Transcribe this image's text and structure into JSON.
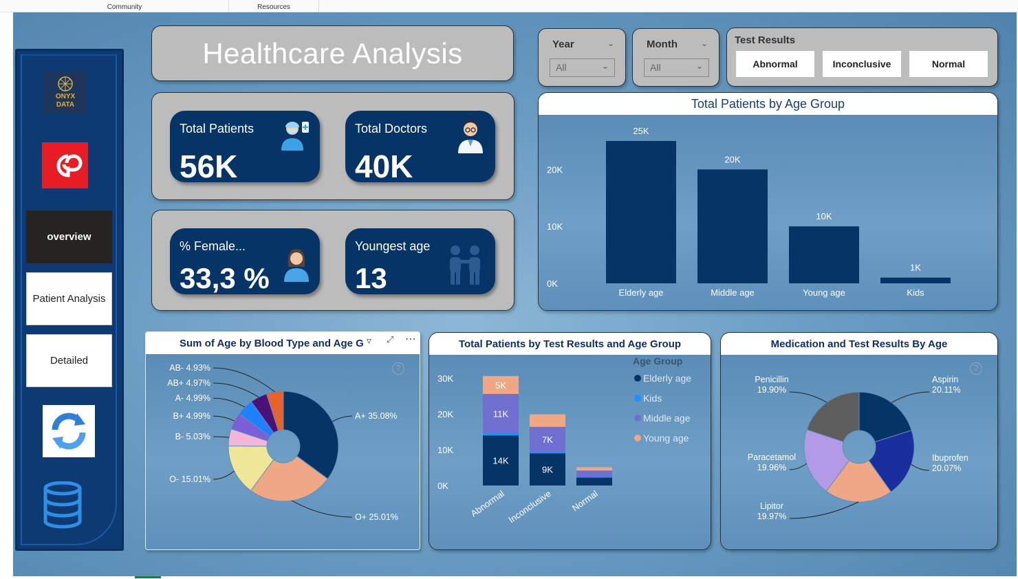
{
  "topbar": {
    "tabs": [
      "Community",
      "Resources"
    ]
  },
  "sidebar": {
    "logo_text": [
      "ONYX",
      "DATA"
    ],
    "nav": [
      {
        "label": "overview",
        "active": true
      },
      {
        "label": "Patient Analysis",
        "active": false
      },
      {
        "label": "Detailed",
        "active": false
      }
    ]
  },
  "header": {
    "title": "Healthcare Analysis"
  },
  "filters": {
    "year": {
      "title": "Year",
      "value": "All"
    },
    "month": {
      "title": "Month",
      "value": "All"
    },
    "test_results": {
      "title": "Test Results",
      "options": [
        "Abnormal",
        "Inconclusive",
        "Normal"
      ]
    }
  },
  "kpis": {
    "total_patients": {
      "label": "Total Patients",
      "value": "56K"
    },
    "total_doctors": {
      "label": "Total Doctors",
      "value": "40K"
    },
    "pct_female": {
      "label": "% Female...",
      "value": "33,3 %"
    },
    "youngest_age": {
      "label": "Youngest age",
      "value": "13"
    }
  },
  "colors": {
    "navy": "#063466",
    "accent_blue": "#1e90ff",
    "purple": "#7b6fd3",
    "salmon": "#f0a785"
  },
  "chart_data": [
    {
      "type": "bar",
      "title": "Total Patients by Age Group",
      "categories": [
        "Elderly age",
        "Middle age",
        "Young age",
        "Kids"
      ],
      "values": [
        25000,
        20000,
        10000,
        1000
      ],
      "data_labels": [
        "25K",
        "20K",
        "10K",
        "1K"
      ],
      "y_ticks": [
        "0K",
        "10K",
        "20K"
      ],
      "ylim": [
        0,
        25000
      ],
      "color": "#063466"
    },
    {
      "type": "pie",
      "title": "Sum of Age by Blood Type and Age G",
      "slices": [
        {
          "label": "A+",
          "pct": "35.08%",
          "value": 35.08,
          "color": "#063466"
        },
        {
          "label": "O+",
          "pct": "25.01%",
          "value": 25.01,
          "color": "#f0a785"
        },
        {
          "label": "O-",
          "pct": "15.01%",
          "value": 15.01,
          "color": "#f0e69a"
        },
        {
          "label": "B-",
          "pct": "5.03%",
          "value": 5.03,
          "color": "#f3b6d8"
        },
        {
          "label": "B+",
          "pct": "4.99%",
          "value": 4.99,
          "color": "#7b5fd6"
        },
        {
          "label": "A-",
          "pct": "4.99%",
          "value": 4.99,
          "color": "#1e7fff"
        },
        {
          "label": "AB+",
          "pct": "4.97%",
          "value": 4.97,
          "color": "#4a1278"
        },
        {
          "label": "AB-",
          "pct": "4.93%",
          "value": 4.93,
          "color": "#e8622d"
        }
      ]
    },
    {
      "type": "bar",
      "stacked": true,
      "title": "Total Patients by Test Results and Age Group",
      "categories": [
        "Abnormal",
        "Inconclusive",
        "Normal"
      ],
      "legend_title": "Age Group",
      "series": [
        {
          "name": "Elderly age",
          "color": "#063466",
          "values": [
            14000,
            9000,
            2200
          ]
        },
        {
          "name": "Kids",
          "color": "#1e90ff",
          "values": [
            600,
            400,
            200
          ]
        },
        {
          "name": "Middle age",
          "color": "#6f6fcf",
          "values": [
            11000,
            7000,
            1800
          ]
        },
        {
          "name": "Young age",
          "color": "#f0a785",
          "values": [
            5000,
            3500,
            900
          ]
        }
      ],
      "data_labels": [
        [
          "14K",
          "",
          "11K",
          "5K"
        ],
        [
          "9K",
          "",
          "7K",
          ""
        ],
        [
          "",
          "",
          "",
          ""
        ]
      ],
      "y_ticks": [
        "0K",
        "10K",
        "20K",
        "30K"
      ],
      "ylim": [
        0,
        30000
      ]
    },
    {
      "type": "pie",
      "title": "Medication and Test Results By Age",
      "slices": [
        {
          "label": "Aspirin",
          "pct": "20.11%",
          "value": 20.11,
          "color": "#063466"
        },
        {
          "label": "Ibuprofen",
          "pct": "20.07%",
          "value": 20.07,
          "color": "#1a2f9c"
        },
        {
          "label": "Lipitor",
          "pct": "19.97%",
          "value": 19.97,
          "color": "#f0a785"
        },
        {
          "label": "Paracetamol",
          "pct": "19.96%",
          "value": 19.96,
          "color": "#b39ae6"
        },
        {
          "label": "Penicillin",
          "pct": "19.90%",
          "value": 19.9,
          "color": "#5d5d5d"
        }
      ]
    }
  ]
}
